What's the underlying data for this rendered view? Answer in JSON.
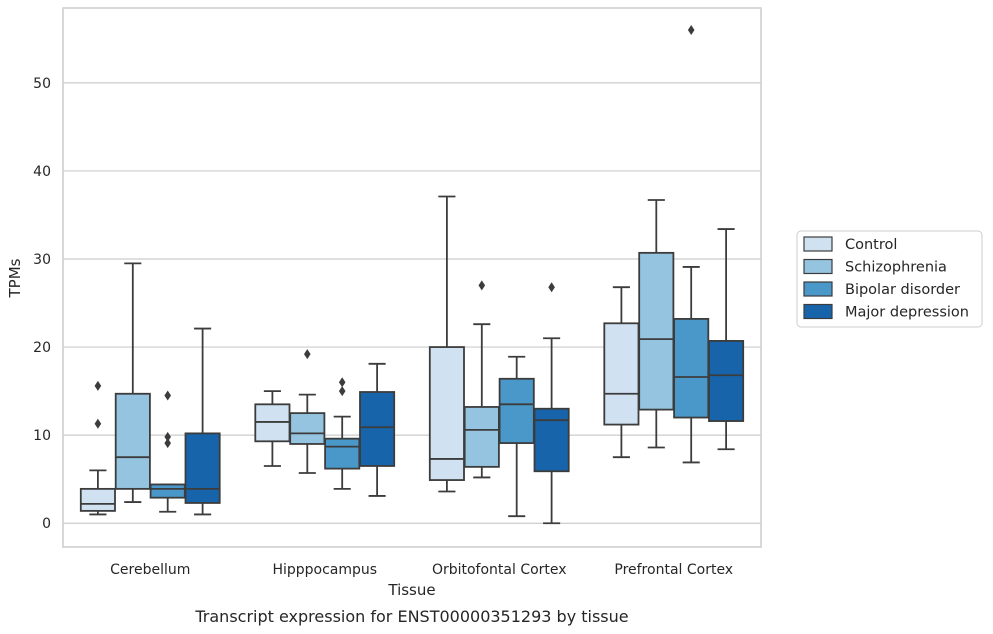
{
  "chart_data": {
    "type": "box",
    "caption": "Transcript expression for ENST00000351293 by tissue",
    "xlabel": "Tissue",
    "ylabel": "TPMs",
    "ylim": [
      -2.7,
      58.5
    ],
    "yticks": [
      0,
      10,
      20,
      30,
      40,
      50
    ],
    "grid": "horizontal",
    "legend_position": "right",
    "categories": [
      "Cerebellum",
      "Hipppocampus",
      "Orbitofontal Cortex",
      "Prefrontal Cortex"
    ],
    "series": [
      {
        "name": "Control",
        "color": "#d0e1f2",
        "boxes": [
          {
            "whislo": 1.0,
            "q1": 1.4,
            "med": 2.2,
            "q3": 3.9,
            "whishi": 6.0,
            "fliers": [
              11.3,
              15.6
            ]
          },
          {
            "whislo": 6.5,
            "q1": 9.3,
            "med": 11.5,
            "q3": 13.5,
            "whishi": 15.0,
            "fliers": []
          },
          {
            "whislo": 3.6,
            "q1": 4.9,
            "med": 7.3,
            "q3": 20.0,
            "whishi": 37.1,
            "fliers": []
          },
          {
            "whislo": 7.5,
            "q1": 11.2,
            "med": 14.7,
            "q3": 22.7,
            "whishi": 26.8,
            "fliers": []
          }
        ]
      },
      {
        "name": "Schizophrenia",
        "color": "#94c4df",
        "boxes": [
          {
            "whislo": 2.4,
            "q1": 3.9,
            "med": 7.5,
            "q3": 14.7,
            "whishi": 29.5,
            "fliers": []
          },
          {
            "whislo": 5.7,
            "q1": 9.0,
            "med": 10.2,
            "q3": 12.5,
            "whishi": 14.6,
            "fliers": [
              19.2
            ]
          },
          {
            "whislo": 5.2,
            "q1": 6.4,
            "med": 10.6,
            "q3": 13.2,
            "whishi": 22.6,
            "fliers": [
              27.0
            ]
          },
          {
            "whislo": 8.6,
            "q1": 12.9,
            "med": 20.9,
            "q3": 30.7,
            "whishi": 36.7,
            "fliers": []
          }
        ]
      },
      {
        "name": "Bipolar disorder",
        "color": "#4a98c9",
        "boxes": [
          {
            "whislo": 1.3,
            "q1": 2.9,
            "med": 3.9,
            "q3": 4.4,
            "whishi": 4.4,
            "fliers": [
              9.1,
              9.8,
              14.5
            ]
          },
          {
            "whislo": 3.9,
            "q1": 6.2,
            "med": 8.7,
            "q3": 9.6,
            "whishi": 12.1,
            "fliers": [
              15.0,
              16.0
            ]
          },
          {
            "whislo": 0.8,
            "q1": 9.1,
            "med": 13.5,
            "q3": 16.4,
            "whishi": 18.9,
            "fliers": []
          },
          {
            "whislo": 6.9,
            "q1": 12.0,
            "med": 16.6,
            "q3": 23.2,
            "whishi": 29.1,
            "fliers": [
              56.0
            ]
          }
        ]
      },
      {
        "name": "Major depression",
        "color": "#1764ab",
        "boxes": [
          {
            "whislo": 1.0,
            "q1": 2.3,
            "med": 3.9,
            "q3": 10.2,
            "whishi": 22.1,
            "fliers": []
          },
          {
            "whislo": 3.1,
            "q1": 6.5,
            "med": 10.9,
            "q3": 14.9,
            "whishi": 18.1,
            "fliers": []
          },
          {
            "whislo": 0.0,
            "q1": 5.9,
            "med": 11.7,
            "q3": 13.0,
            "whishi": 21.0,
            "fliers": [
              26.8
            ]
          },
          {
            "whislo": 8.4,
            "q1": 11.6,
            "med": 16.8,
            "q3": 20.7,
            "whishi": 33.4,
            "fliers": []
          }
        ]
      }
    ]
  }
}
